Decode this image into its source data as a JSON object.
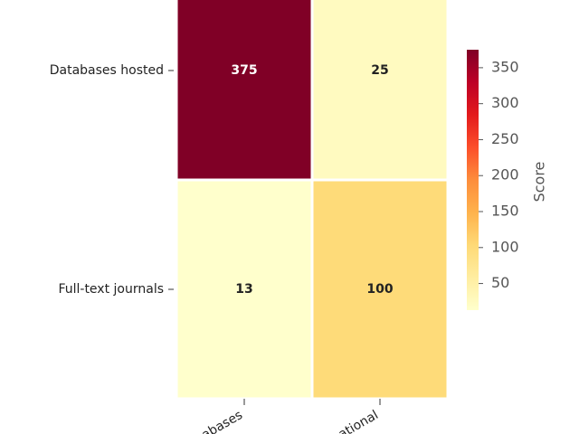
{
  "chart_data": {
    "type": "heatmap",
    "x_categories": [
      "abases",
      "ational"
    ],
    "y_categories": [
      "Databases hosted",
      "Full-text journals"
    ],
    "values": [
      [
        375,
        25
      ],
      [
        13,
        100
      ]
    ],
    "colorscale": [
      "#ffffcc",
      "#ffeda0",
      "#fed976",
      "#feb24c",
      "#fd8d3c",
      "#fc4e2a",
      "#e31a1c",
      "#bd0026",
      "#800026"
    ],
    "zlim": [
      13,
      375
    ],
    "zticks": [
      50,
      100,
      150,
      200,
      250,
      300,
      350
    ],
    "colorbar_label": "Score"
  }
}
